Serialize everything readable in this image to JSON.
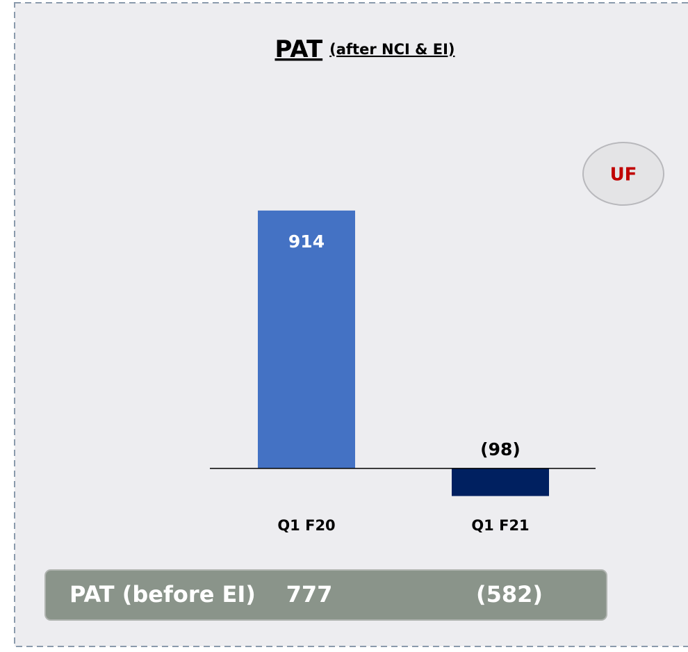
{
  "chart_data": {
    "type": "bar",
    "title": "PAT",
    "subtitle": "(after NCI & EI)",
    "categories": [
      "Q1  F20",
      "Q1  F21"
    ],
    "values": [
      914,
      -98
    ],
    "value_labels": [
      "914",
      "(98)"
    ],
    "colors": [
      "#4472c4",
      "#002060"
    ],
    "ylim": [
      -200,
      1000
    ],
    "annotation": "UF",
    "footer": {
      "label": "PAT (before EI)",
      "cells": [
        "777",
        "(582)"
      ]
    }
  }
}
